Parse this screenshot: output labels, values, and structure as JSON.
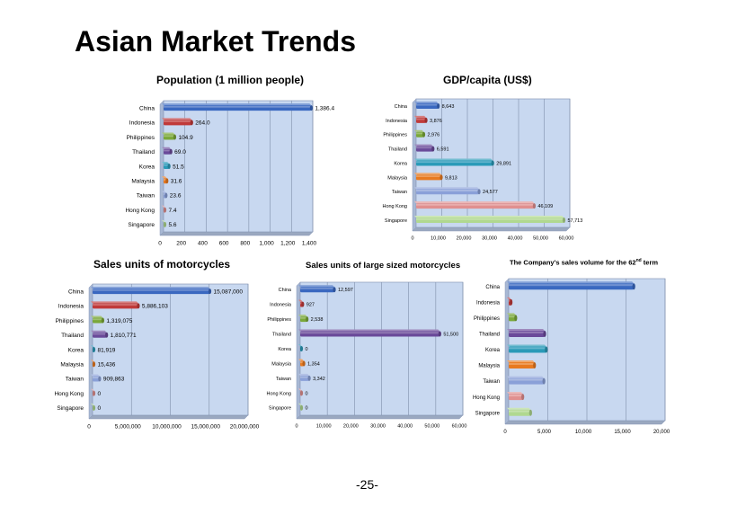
{
  "page": {
    "title": "Asian Market Trends",
    "number": "-25-"
  },
  "chart_data": [
    {
      "type": "bar",
      "orientation": "horizontal",
      "title": "Population (1 million people)",
      "categories": [
        "China",
        "Indonesia",
        "Philippines",
        "Thailand",
        "Korea",
        "Malaysia",
        "Taiwan",
        "Hong Kong",
        "Singapore"
      ],
      "values": [
        1386.4,
        264.0,
        104.9,
        69.0,
        51.5,
        31.6,
        23.6,
        7.4,
        5.6
      ],
      "value_labels": [
        "1,386.4",
        "264.0",
        "104.9",
        "69.0",
        "51.5",
        "31.6",
        "23.6",
        "7.4",
        "5.6"
      ],
      "xlim": [
        0,
        1400
      ],
      "ticks": [
        0,
        200,
        400,
        600,
        800,
        1000,
        1200,
        1400
      ],
      "tick_labels": [
        "0",
        "200",
        "400",
        "600",
        "800",
        "1,000",
        "1,200",
        "1,400"
      ],
      "grid": true
    },
    {
      "type": "bar",
      "orientation": "horizontal",
      "title": "GDP/capita (US$)",
      "categories": [
        "China",
        "Indonesia",
        "Philippines",
        "Thailand",
        "Korea",
        "Malaysia",
        "Taiwan",
        "Hong Kong",
        "Singapore"
      ],
      "values": [
        8643,
        3876,
        2976,
        6591,
        29891,
        9813,
        24577,
        46109,
        57713
      ],
      "value_labels": [
        "8,643",
        "3,876",
        "2,976",
        "6,591",
        "29,891",
        "9,813",
        "24,577",
        "46,109",
        "57,713"
      ],
      "xlim": [
        0,
        60000
      ],
      "ticks": [
        0,
        10000,
        20000,
        30000,
        40000,
        50000,
        60000
      ],
      "tick_labels": [
        "0",
        "10,000",
        "20,000",
        "30,000",
        "40,000",
        "50,000",
        "60,000"
      ],
      "grid": true
    },
    {
      "type": "bar",
      "orientation": "horizontal",
      "title": "Sales units of motorcycles",
      "categories": [
        "China",
        "Indonesia",
        "Philippines",
        "Thailand",
        "Korea",
        "Malaysia",
        "Taiwan",
        "Hong Kong",
        "Singapore"
      ],
      "values": [
        15087000,
        5886103,
        1319075,
        1810771,
        81919,
        15436,
        909863,
        0,
        0
      ],
      "value_labels": [
        "15,087,000",
        "5,886,103",
        "1,319,075",
        "1,810,771",
        "81,919",
        "15,436",
        "909,863",
        "0",
        "0"
      ],
      "xlim": [
        0,
        20000000
      ],
      "ticks": [
        0,
        5000000,
        10000000,
        15000000,
        20000000
      ],
      "tick_labels": [
        "0",
        "5,000,000",
        "10,000,000",
        "15,000,000",
        "20,000,000"
      ],
      "grid": true
    },
    {
      "type": "bar",
      "orientation": "horizontal",
      "title": "Sales units of large sized motorcycles",
      "categories": [
        "China",
        "Indonesia",
        "Philippines",
        "Thailand",
        "Korea",
        "Malaysia",
        "Taiwan",
        "Hong Kong",
        "Singapore"
      ],
      "values": [
        12597,
        927,
        2538,
        51500,
        0,
        1354,
        3342,
        0,
        0
      ],
      "value_labels": [
        "12,597",
        "927",
        "2,538",
        "51,500",
        "0",
        "1,354",
        "3,342",
        "0",
        "0"
      ],
      "xlim": [
        0,
        60000
      ],
      "ticks": [
        0,
        10000,
        20000,
        30000,
        40000,
        50000,
        60000
      ],
      "tick_labels": [
        "0",
        "10,000",
        "20,000",
        "30,000",
        "40,000",
        "50,000",
        "60,000"
      ],
      "grid": true
    },
    {
      "type": "bar",
      "orientation": "horizontal",
      "title": "The Company's sales volume for the 62nd term",
      "title_main": "The Company's sales volume for the 62",
      "title_sup": "nd",
      "title_tail": " term",
      "categories": [
        "China",
        "Indonesia",
        "Philippines",
        "Thailand",
        "Korea",
        "Malaysia",
        "Taiwan",
        "Hong Kong",
        "Singapore"
      ],
      "values": [
        16000,
        300,
        900,
        4600,
        4800,
        3300,
        4500,
        1800,
        2800
      ],
      "xlim": [
        0,
        20000
      ],
      "ticks": [
        0,
        5000,
        10000,
        15000,
        20000
      ],
      "tick_labels": [
        "0",
        "5,000",
        "10,000",
        "15,000",
        "20,000"
      ],
      "grid": true
    }
  ],
  "colors": [
    "#3a68c0",
    "#c03a3a",
    "#7aa83a",
    "#6a4a9a",
    "#2a9ab8",
    "#e87a20",
    "#8aa0d8",
    "#e09090",
    "#b0d890"
  ],
  "plot_background": "#c8d8f0"
}
